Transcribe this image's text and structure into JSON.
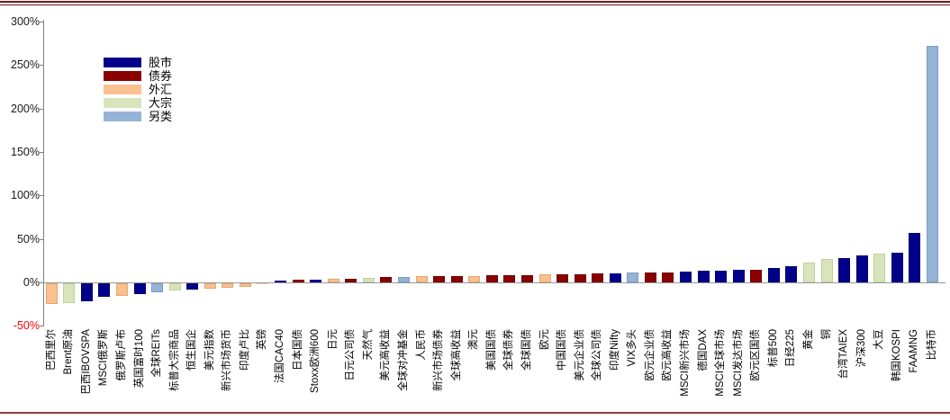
{
  "frame": {
    "top_rule_color": "#73181A",
    "bottom_rule_color": "#8E3B3B",
    "axis_color": "#808080",
    "zero_line_color": "#9A9A9A",
    "negative_tick_color": "#FF0000"
  },
  "legend": {
    "items": [
      {
        "label": "股市",
        "color": "#00008B"
      },
      {
        "label": "债券",
        "color": "#8B0000"
      },
      {
        "label": "外汇",
        "color": "#FAC090"
      },
      {
        "label": "大宗",
        "color": "#D7E4BC"
      },
      {
        "label": "另类",
        "color": "#95B3D7"
      }
    ]
  },
  "chart_data": {
    "type": "bar",
    "title": "",
    "xlabel": "",
    "ylabel": "",
    "ylim": [
      -50,
      300
    ],
    "grid": false,
    "legend_position": "upper-left-inside",
    "ytick_values": [
      300,
      250,
      200,
      150,
      100,
      50,
      0,
      -50
    ],
    "ytick_labels": [
      "300%",
      "250%",
      "200%",
      "150%",
      "100%",
      "50%",
      "0%",
      "-50%"
    ],
    "unit": "%",
    "palette": {
      "股市": {
        "fill": "#00008B",
        "border": "#00006B"
      },
      "债券": {
        "fill": "#8B0000",
        "border": "#6E0000"
      },
      "外汇": {
        "fill": "#FAC090",
        "border": "#E3A671"
      },
      "大宗": {
        "fill": "#D7E4BC",
        "border": "#BFD29B"
      },
      "另类": {
        "fill": "#95B3D7",
        "border": "#7C9EC4"
      }
    },
    "bars": [
      {
        "label": "巴西里尔",
        "class": "外汇",
        "value": -24
      },
      {
        "label": "Brent原油",
        "class": "大宗",
        "value": -23
      },
      {
        "label": "巴西IBOVSPA",
        "class": "股市",
        "value": -21
      },
      {
        "label": "MSCI俄罗斯",
        "class": "股市",
        "value": -16
      },
      {
        "label": "俄罗斯卢布",
        "class": "外汇",
        "value": -15
      },
      {
        "label": "英国富时100",
        "class": "股市",
        "value": -13
      },
      {
        "label": "全球REITs",
        "class": "另类",
        "value": -11
      },
      {
        "label": "标普大宗商品",
        "class": "大宗",
        "value": -8
      },
      {
        "label": "恒生国企",
        "class": "股市",
        "value": -7
      },
      {
        "label": "美元指数",
        "class": "外汇",
        "value": -6
      },
      {
        "label": "新兴市场货币",
        "class": "外汇",
        "value": -5
      },
      {
        "label": "印度卢比",
        "class": "外汇",
        "value": -4
      },
      {
        "label": "英镑",
        "class": "外汇",
        "value": -1
      },
      {
        "label": "法国CAC40",
        "class": "股市",
        "value": 2
      },
      {
        "label": "日本国债",
        "class": "债券",
        "value": 3
      },
      {
        "label": "Stoxx欧洲600",
        "class": "股市",
        "value": 3
      },
      {
        "label": "日元",
        "class": "外汇",
        "value": 4
      },
      {
        "label": "日元公司债",
        "class": "债券",
        "value": 4
      },
      {
        "label": "天然气",
        "class": "大宗",
        "value": 5
      },
      {
        "label": "美元高收益",
        "class": "债券",
        "value": 6
      },
      {
        "label": "全球对冲基金",
        "class": "另类",
        "value": 6
      },
      {
        "label": "人民币",
        "class": "外汇",
        "value": 7
      },
      {
        "label": "新兴市场债券",
        "class": "债券",
        "value": 7
      },
      {
        "label": "全球高收益",
        "class": "债券",
        "value": 7
      },
      {
        "label": "澳元",
        "class": "外汇",
        "value": 7
      },
      {
        "label": "美国国债",
        "class": "债券",
        "value": 8
      },
      {
        "label": "全球债券",
        "class": "债券",
        "value": 8
      },
      {
        "label": "全球国债",
        "class": "债券",
        "value": 8
      },
      {
        "label": "欧元",
        "class": "外汇",
        "value": 9
      },
      {
        "label": "中国国债",
        "class": "债券",
        "value": 9
      },
      {
        "label": "美元企业债",
        "class": "债券",
        "value": 9
      },
      {
        "label": "全球公司债",
        "class": "债券",
        "value": 10
      },
      {
        "label": "印度Nifty",
        "class": "股市",
        "value": 10
      },
      {
        "label": "VIX多头",
        "class": "另类",
        "value": 11
      },
      {
        "label": "欧元企业债",
        "class": "债券",
        "value": 11
      },
      {
        "label": "欧元高收益",
        "class": "债券",
        "value": 11
      },
      {
        "label": "MSCI新兴市场",
        "class": "股市",
        "value": 12
      },
      {
        "label": "德国DAX",
        "class": "股市",
        "value": 13
      },
      {
        "label": "MSCI全球市场",
        "class": "股市",
        "value": 13
      },
      {
        "label": "MSCI发达市场",
        "class": "股市",
        "value": 14
      },
      {
        "label": "欧元区国债",
        "class": "债券",
        "value": 14
      },
      {
        "label": "标普500",
        "class": "股市",
        "value": 16
      },
      {
        "label": "日经225",
        "class": "股市",
        "value": 18
      },
      {
        "label": "黄金",
        "class": "大宗",
        "value": 23
      },
      {
        "label": "铜",
        "class": "大宗",
        "value": 27
      },
      {
        "label": "台湾TAIEX",
        "class": "股市",
        "value": 28
      },
      {
        "label": "沪深300",
        "class": "股市",
        "value": 31
      },
      {
        "label": "大豆",
        "class": "大宗",
        "value": 33
      },
      {
        "label": "韩国KOSPI",
        "class": "股市",
        "value": 34
      },
      {
        "label": "FAAMNG",
        "class": "股市",
        "value": 57
      },
      {
        "label": "比特币",
        "class": "另类",
        "value": 272
      }
    ]
  }
}
